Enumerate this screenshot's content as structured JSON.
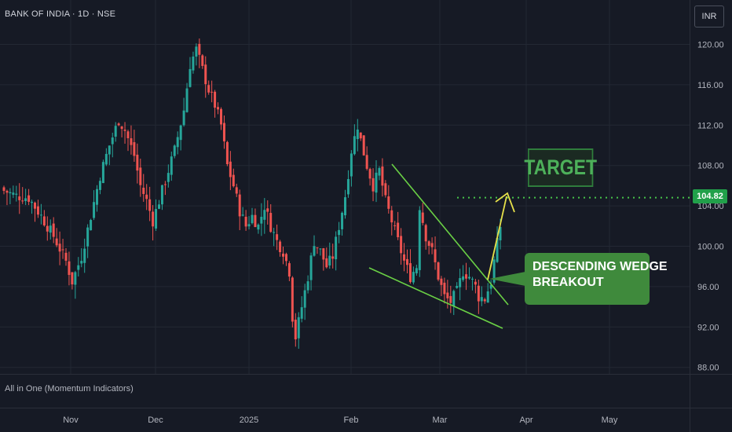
{
  "header": {
    "symbol_line": "BANK OF INDIA · 1D · NSE",
    "currency": "INR"
  },
  "indicator_pane": {
    "label": "All in One (Momentum Indicators)"
  },
  "annotations": {
    "target_label": "TARGET",
    "target_price": "104.82",
    "callout_line1": "DESCENDING WEDGE",
    "callout_line2": "BREAKOUT"
  },
  "colors": {
    "background": "#161a25",
    "grid": "#232834",
    "up_candle": "#26a69a",
    "down_candle": "#ef5350",
    "wedge_line": "#6ad045",
    "arrow": "#e6e04a",
    "target_dotted": "#45c24a",
    "callout_bg": "#3f8a3c"
  },
  "chart_data": {
    "type": "candlestick",
    "title": "BANK OF INDIA · 1D · NSE",
    "y_axis": {
      "ticks": [
        "120.00",
        "116.00",
        "112.00",
        "108.00",
        "104.00",
        "100.00",
        "96.00",
        "92.00",
        "88.00"
      ],
      "ylim": [
        86.5,
        123.5
      ]
    },
    "x_axis": {
      "ticks": [
        "Nov",
        "Dec",
        "2025",
        "Feb",
        "Mar",
        "Apr",
        "May"
      ]
    },
    "target_level": 104.82,
    "close_path": [
      [
        0,
        105.5
      ],
      [
        4,
        105.0
      ],
      [
        8,
        104.8
      ],
      [
        12,
        103.0
      ],
      [
        16,
        101.0
      ],
      [
        20,
        98.5
      ],
      [
        22,
        96.5
      ],
      [
        25,
        99.0
      ],
      [
        28,
        103.0
      ],
      [
        31,
        107.0
      ],
      [
        34,
        110.0
      ],
      [
        37,
        112.5
      ],
      [
        39,
        111.5
      ],
      [
        42,
        109.0
      ],
      [
        44,
        106.0
      ],
      [
        46,
        104.5
      ],
      [
        48,
        102.5
      ],
      [
        49,
        103.5
      ],
      [
        52,
        106.5
      ],
      [
        55,
        109.5
      ],
      [
        58,
        113.5
      ],
      [
        60,
        118.0
      ],
      [
        62,
        119.5
      ],
      [
        64,
        117.5
      ],
      [
        66,
        115.5
      ],
      [
        68,
        114.0
      ],
      [
        70,
        112.0
      ],
      [
        72,
        108.0
      ],
      [
        74,
        106.0
      ],
      [
        76,
        103.5
      ],
      [
        78,
        102.0
      ],
      [
        80,
        103.0
      ],
      [
        82,
        102.0
      ],
      [
        84,
        104.0
      ],
      [
        86,
        102.0
      ],
      [
        88,
        100.5
      ],
      [
        90,
        99.5
      ],
      [
        92,
        97.5
      ],
      [
        93,
        93.0
      ],
      [
        94,
        91.0
      ],
      [
        96,
        94.0
      ],
      [
        98,
        97.0
      ],
      [
        100,
        100.5
      ],
      [
        102,
        99.5
      ],
      [
        104,
        98.0
      ],
      [
        106,
        99.0
      ],
      [
        108,
        102.0
      ],
      [
        110,
        105.0
      ],
      [
        112,
        109.5
      ],
      [
        114,
        112.0
      ],
      [
        115,
        110.5
      ],
      [
        117,
        108.0
      ],
      [
        119,
        106.0
      ],
      [
        121,
        107.5
      ],
      [
        123,
        104.5
      ],
      [
        125,
        102.5
      ],
      [
        127,
        100.5
      ],
      [
        129,
        98.5
      ],
      [
        131,
        97.0
      ],
      [
        133,
        98.0
      ],
      [
        134,
        104.0
      ],
      [
        136,
        101.0
      ],
      [
        138,
        99.5
      ],
      [
        140,
        97.0
      ],
      [
        142,
        95.0
      ],
      [
        144,
        94.5
      ],
      [
        146,
        95.5
      ],
      [
        148,
        97.5
      ],
      [
        150,
        97.0
      ],
      [
        152,
        96.0
      ],
      [
        153,
        95.0
      ],
      [
        155,
        94.8
      ],
      [
        157,
        96.5
      ],
      [
        158,
        98.5
      ],
      [
        160,
        102.0
      ]
    ]
  }
}
